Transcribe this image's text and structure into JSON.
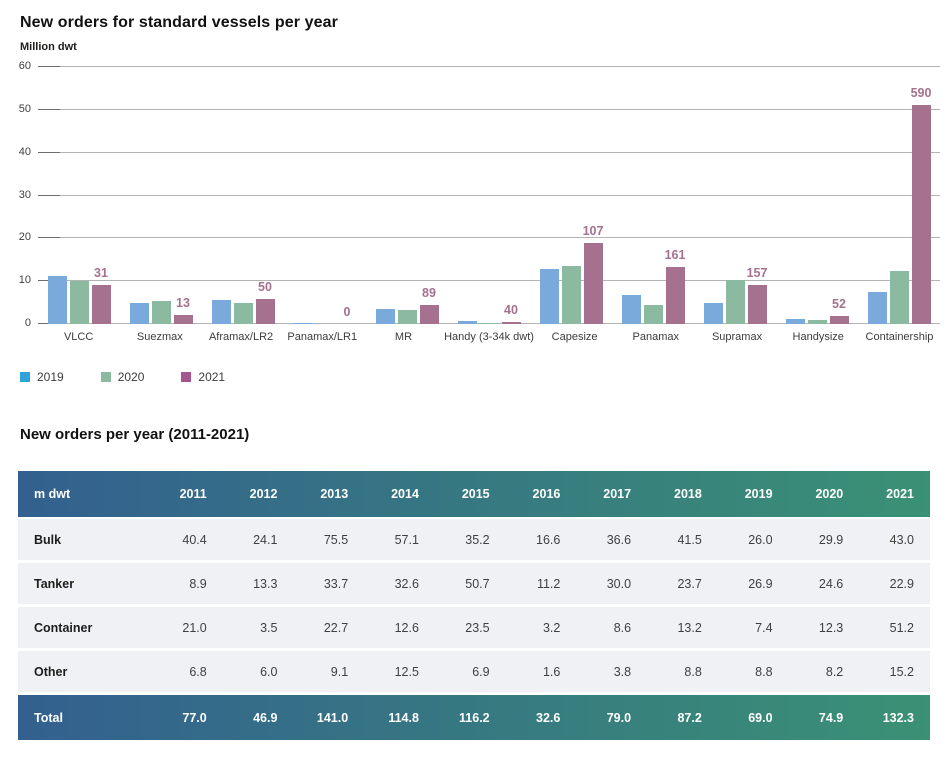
{
  "chart_data": [
    {
      "type": "bar",
      "title": "New orders for standard vessels per year",
      "unit_label": "Million dwt",
      "categories": [
        "VLCC",
        "Suezmax",
        "Aframax/LR2",
        "Panamax/LR1",
        "MR",
        "Handy (3-34k dwt)",
        "Capesize",
        "Panamax",
        "Supramax",
        "Handysize",
        "Containership"
      ],
      "series": [
        {
          "name": "2019",
          "color": "#7aa9dc",
          "legend_color": "#2ea3d9",
          "values": [
            11.2,
            4.9,
            5.5,
            0.2,
            3.6,
            0.8,
            12.8,
            6.7,
            4.8,
            1.2,
            7.4
          ]
        },
        {
          "name": "2020",
          "color": "#8cbaa1",
          "legend_color": "#8cbaa1",
          "values": [
            10.0,
            5.3,
            4.8,
            0.0,
            3.3,
            0.3,
            13.6,
            4.4,
            10.2,
            0.9,
            12.3
          ]
        },
        {
          "name": "2021",
          "color": "#a5718f",
          "legend_color": "#a4568d",
          "values": [
            9.2,
            2.1,
            5.9,
            0.0,
            4.4,
            0.5,
            18.9,
            13.3,
            9.1,
            1.8,
            51.2
          ]
        }
      ],
      "value_labels": [
        "31",
        "13",
        "50",
        "0",
        "89",
        "40",
        "107",
        "161",
        "157",
        "52",
        "590"
      ],
      "value_labels_series": "2021",
      "yticks": [
        60,
        50,
        40,
        30,
        20,
        10,
        0
      ],
      "ylim": [
        0,
        60
      ],
      "grid": "horizontal",
      "legend_position": "bottom-left"
    },
    {
      "type": "table",
      "title": "New orders per year (2011-2021)",
      "columns": [
        "m dwt",
        "2011",
        "2012",
        "2013",
        "2014",
        "2015",
        "2016",
        "2017",
        "2018",
        "2019",
        "2020",
        "2021"
      ],
      "rows": [
        {
          "label": "Bulk",
          "values": [
            "40.4",
            "24.1",
            "75.5",
            "57.1",
            "35.2",
            "16.6",
            "36.6",
            "41.5",
            "26.0",
            "29.9",
            "43.0"
          ]
        },
        {
          "label": "Tanker",
          "values": [
            "8.9",
            "13.3",
            "33.7",
            "32.6",
            "50.7",
            "11.2",
            "30.0",
            "23.7",
            "26.9",
            "24.6",
            "22.9"
          ]
        },
        {
          "label": "Container",
          "values": [
            "21.0",
            "3.5",
            "22.7",
            "12.6",
            "23.5",
            "3.2",
            "8.6",
            "13.2",
            "7.4",
            "12.3",
            "51.2"
          ]
        },
        {
          "label": "Other",
          "values": [
            "6.8",
            "6.0",
            "9.1",
            "12.5",
            "6.9",
            "1.6",
            "3.8",
            "8.8",
            "8.8",
            "8.2",
            "15.2"
          ]
        }
      ],
      "total_row": {
        "label": "Total",
        "values": [
          "77.0",
          "46.9",
          "141.0",
          "114.8",
          "116.2",
          "32.6",
          "79.0",
          "87.2",
          "69.0",
          "74.9",
          "132.3"
        ]
      }
    }
  ],
  "colors": {
    "gridline": "#b3b3b3",
    "tick_dash": "#6e6e6e",
    "bar_value_label": "#a5718f",
    "table_header_gradient_left": "#33608f",
    "table_header_gradient_right": "#3a9174",
    "table_row_bg": "#eff1f5"
  }
}
